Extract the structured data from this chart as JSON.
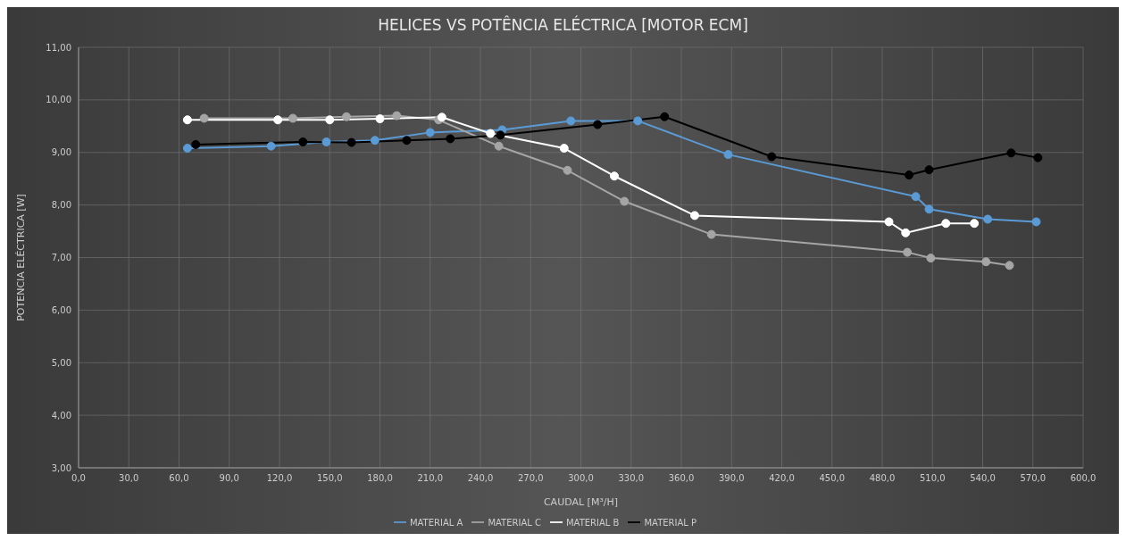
{
  "chart_data": {
    "type": "line",
    "title": "HELICES VS POTÊNCIA ELÉCTRICA [MOTOR ECM]",
    "xlabel": "CAUDAL  [M³/H]",
    "ylabel": "POTENCIA ELÉCTRICA [W]",
    "xlim": [
      0,
      600
    ],
    "xticks": [
      {
        "value": 0,
        "label": "0,0"
      },
      {
        "value": 30,
        "label": "30,0"
      },
      {
        "value": 60,
        "label": "60,0"
      },
      {
        "value": 90,
        "label": "90,0"
      },
      {
        "value": 120,
        "label": "120,0"
      },
      {
        "value": 150,
        "label": "150,0"
      },
      {
        "value": 180,
        "label": "180,0"
      },
      {
        "value": 210,
        "label": "210,0"
      },
      {
        "value": 240,
        "label": "240,0"
      },
      {
        "value": 270,
        "label": "270,0"
      },
      {
        "value": 300,
        "label": "300,0"
      },
      {
        "value": 330,
        "label": "330,0"
      },
      {
        "value": 360,
        "label": "360,0"
      },
      {
        "value": 390,
        "label": "390,0"
      },
      {
        "value": 420,
        "label": "420,0"
      },
      {
        "value": 450,
        "label": "450,0"
      },
      {
        "value": 480,
        "label": "480,0"
      },
      {
        "value": 510,
        "label": "510,0"
      },
      {
        "value": 540,
        "label": "540,0"
      },
      {
        "value": 570,
        "label": "570,0"
      },
      {
        "value": 600,
        "label": "600,0"
      }
    ],
    "ylim": [
      3,
      11
    ],
    "yticks": [
      {
        "value": 3,
        "label": "3,00"
      },
      {
        "value": 4,
        "label": "4,00"
      },
      {
        "value": 5,
        "label": "5,00"
      },
      {
        "value": 6,
        "label": "6,00"
      },
      {
        "value": 7,
        "label": "7,00"
      },
      {
        "value": 8,
        "label": "8,00"
      },
      {
        "value": 9,
        "label": "9,00"
      },
      {
        "value": 10,
        "label": "10,00"
      },
      {
        "value": 11,
        "label": "11,00"
      }
    ],
    "grid": true,
    "legend": "bottom",
    "marker": "circle",
    "line_style": "solid",
    "series": [
      {
        "name": "MATERIAL A",
        "color": "#5b9bd5",
        "x": [
          65,
          115,
          148,
          177,
          210,
          253,
          294,
          334,
          388,
          500,
          508,
          543,
          572
        ],
        "values": [
          9.08,
          9.12,
          9.2,
          9.23,
          9.38,
          9.43,
          9.6,
          9.6,
          8.96,
          8.16,
          7.92,
          7.73,
          7.68
        ]
      },
      {
        "name": "MATERIAL C",
        "color": "#a5a5a5",
        "x": [
          75,
          128,
          160,
          190,
          215,
          251,
          292,
          326,
          378,
          495,
          509,
          542,
          556
        ],
        "values": [
          9.65,
          9.65,
          9.68,
          9.7,
          9.62,
          9.12,
          8.66,
          8.07,
          7.44,
          7.1,
          6.99,
          6.92,
          6.85
        ]
      },
      {
        "name": "MATERIAL B",
        "color": "#ffffff",
        "x": [
          65,
          119,
          150,
          180,
          217,
          246,
          290,
          320,
          368,
          484,
          494,
          518,
          535
        ],
        "values": [
          9.62,
          9.62,
          9.62,
          9.64,
          9.67,
          9.36,
          9.08,
          8.55,
          7.8,
          7.68,
          7.47,
          7.65,
          7.65
        ]
      },
      {
        "name": "MATERIAL P",
        "color": "#000000",
        "x": [
          70,
          134,
          163,
          196,
          222,
          252,
          310,
          350,
          414,
          496,
          508,
          557,
          573
        ],
        "values": [
          9.15,
          9.2,
          9.19,
          9.23,
          9.26,
          9.33,
          9.53,
          9.68,
          8.92,
          8.57,
          8.67,
          8.99,
          8.9
        ]
      }
    ]
  }
}
